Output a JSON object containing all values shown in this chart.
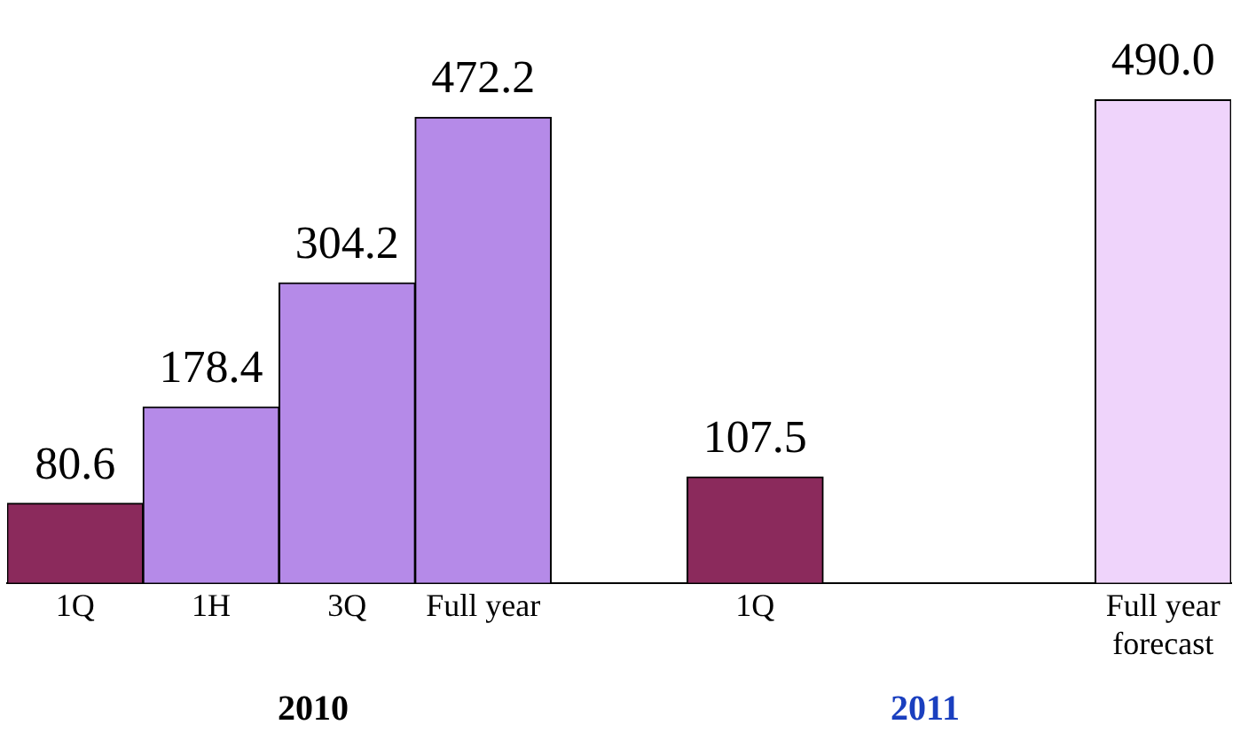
{
  "chart_data": {
    "type": "bar",
    "categories": [
      "1Q",
      "1H",
      "3Q",
      "Full year",
      null,
      "1Q",
      null,
      null,
      "Full year forecast"
    ],
    "values": [
      80.6,
      178.4,
      304.2,
      472.2,
      null,
      107.5,
      null,
      null,
      490.0
    ],
    "colors": [
      "#8b2a5c",
      "#b58ae8",
      "#b58ae8",
      "#b58ae8",
      null,
      "#8b2a5c",
      null,
      null,
      "#efd4fb"
    ],
    "value_labels": [
      "80.6",
      "178.4",
      "304.2",
      "472.2",
      null,
      "107.5",
      null,
      null,
      "490.0"
    ],
    "annotations": [
      "2010",
      "2011"
    ]
  }
}
